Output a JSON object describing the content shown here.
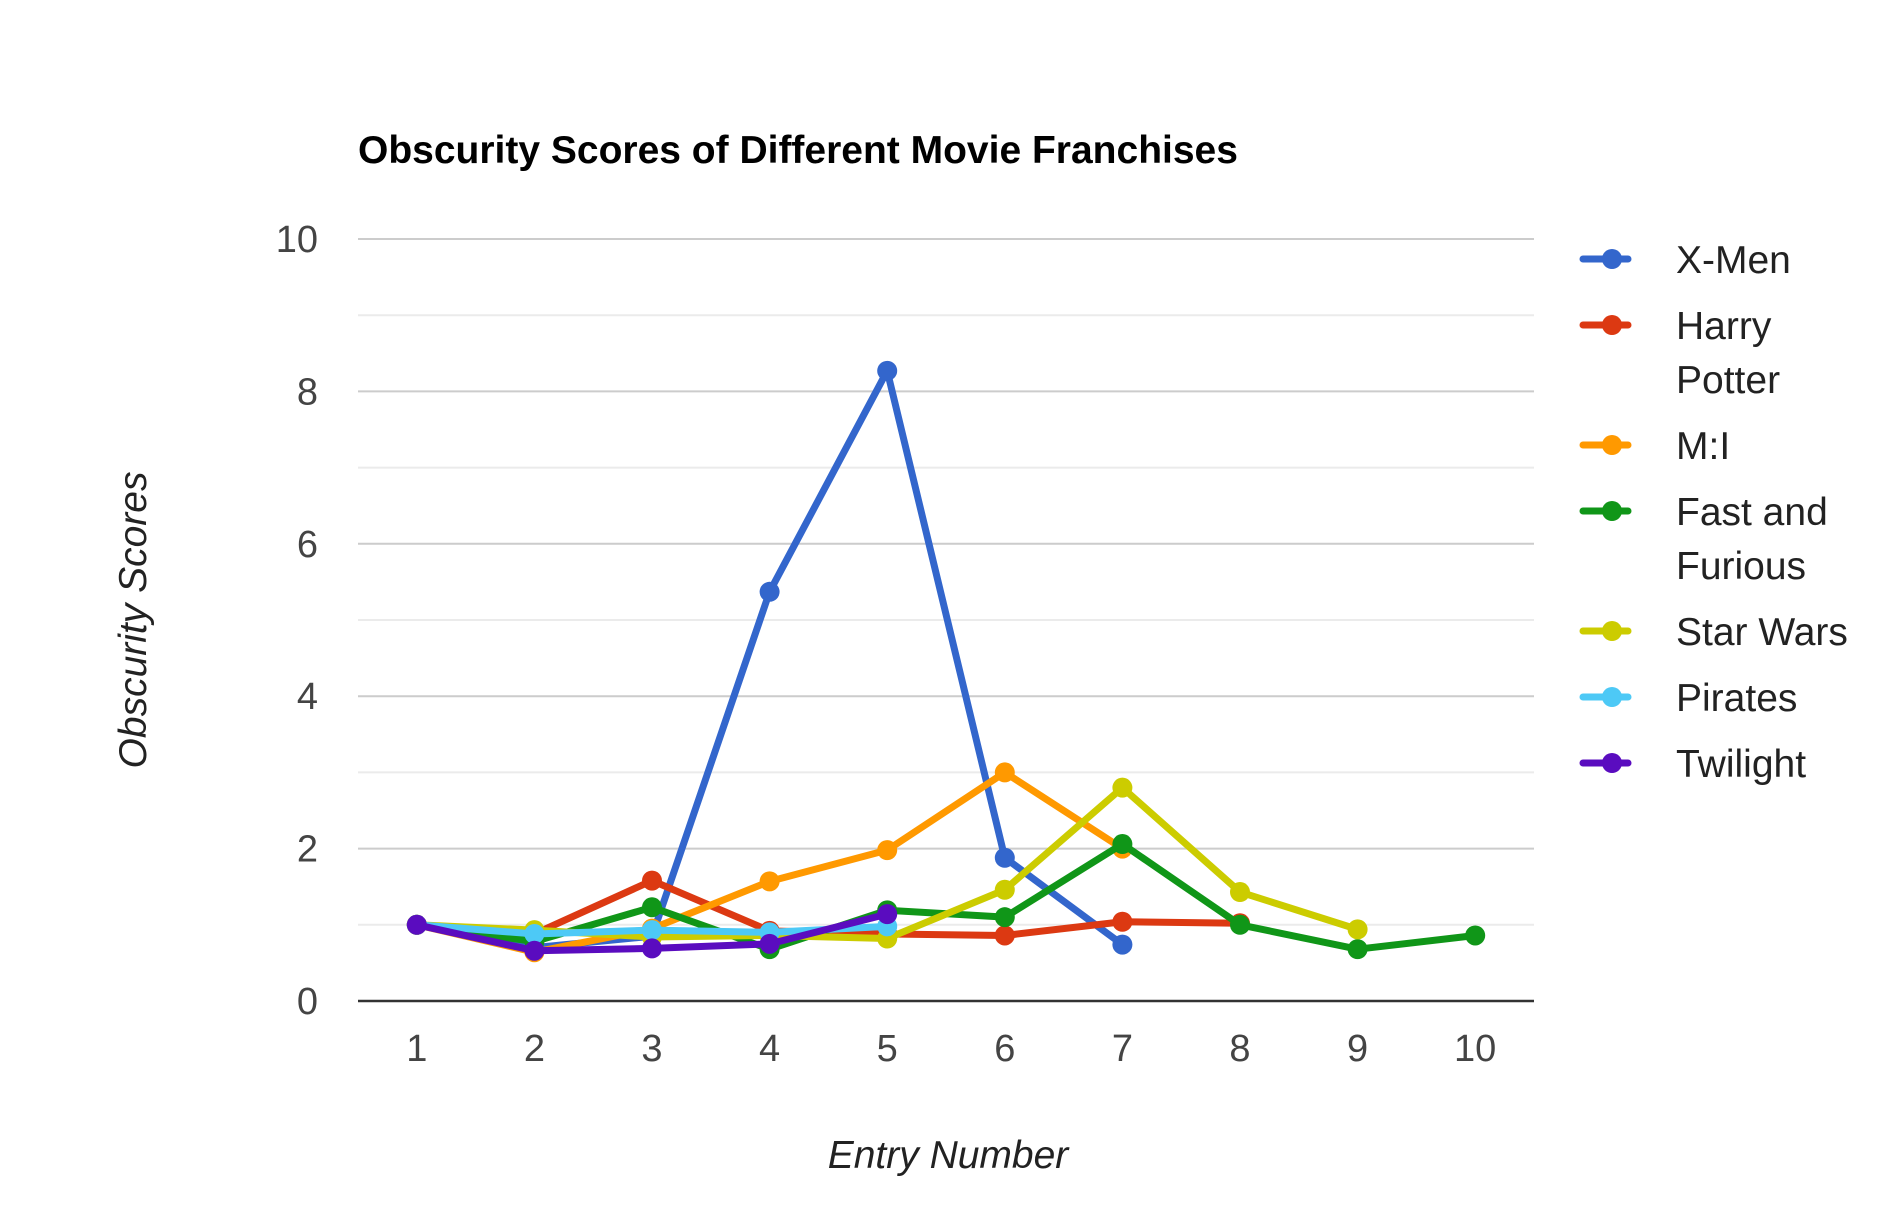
{
  "chart_data": {
    "type": "line",
    "title": "Obscurity Scores of Different Movie Franchises",
    "xlabel": "Entry Number",
    "ylabel": "Obscurity Scores",
    "x": [
      1,
      2,
      3,
      4,
      5,
      6,
      7,
      8,
      9,
      10
    ],
    "x_tick_labels": [
      "1",
      "2",
      "3",
      "4",
      "5",
      "6",
      "7",
      "8",
      "9",
      "10"
    ],
    "ylim": [
      0,
      10
    ],
    "y_ticks": [
      0,
      2,
      4,
      6,
      8,
      10
    ],
    "y_tick_labels": [
      "0",
      "2",
      "4",
      "6",
      "8",
      "10"
    ],
    "grid": true,
    "legend_position": "right",
    "series": [
      {
        "name": "X-Men",
        "legend_lines": [
          "X-Men"
        ],
        "color": "#3366cc",
        "values": [
          1.0,
          0.7,
          0.85,
          5.37,
          8.27,
          1.88,
          0.74,
          null,
          null,
          null
        ]
      },
      {
        "name": "Harry Potter",
        "legend_lines": [
          "Harry",
          "Potter"
        ],
        "color": "#dc3912",
        "values": [
          1.0,
          0.88,
          1.58,
          0.92,
          0.88,
          0.86,
          1.04,
          1.02,
          null,
          null
        ]
      },
      {
        "name": "M:I",
        "legend_lines": [
          "M:I"
        ],
        "color": "#ff9900",
        "values": [
          1.0,
          0.64,
          0.95,
          1.57,
          1.98,
          3.0,
          2.0,
          null,
          null,
          null
        ]
      },
      {
        "name": "Fast and Furious",
        "legend_lines": [
          "Fast and",
          "Furious"
        ],
        "color": "#109618",
        "values": [
          1.0,
          0.78,
          1.23,
          0.68,
          1.19,
          1.1,
          2.06,
          1.0,
          0.68,
          0.86
        ]
      },
      {
        "name": "Star Wars",
        "legend_lines": [
          "Star Wars"
        ],
        "color": "#cccc00",
        "values": [
          1.0,
          0.93,
          0.84,
          0.86,
          0.82,
          1.46,
          2.8,
          1.43,
          0.94,
          null
        ]
      },
      {
        "name": "Pirates",
        "legend_lines": [
          "Pirates"
        ],
        "color": "#4dc9f6",
        "values": [
          1.0,
          0.88,
          0.93,
          0.9,
          0.98,
          null,
          null,
          null,
          null,
          null
        ]
      },
      {
        "name": "Twilight",
        "legend_lines": [
          "Twilight"
        ],
        "color": "#5a0cbf",
        "values": [
          1.0,
          0.66,
          0.69,
          0.75,
          1.14,
          null,
          null,
          null,
          null,
          null
        ]
      }
    ]
  }
}
